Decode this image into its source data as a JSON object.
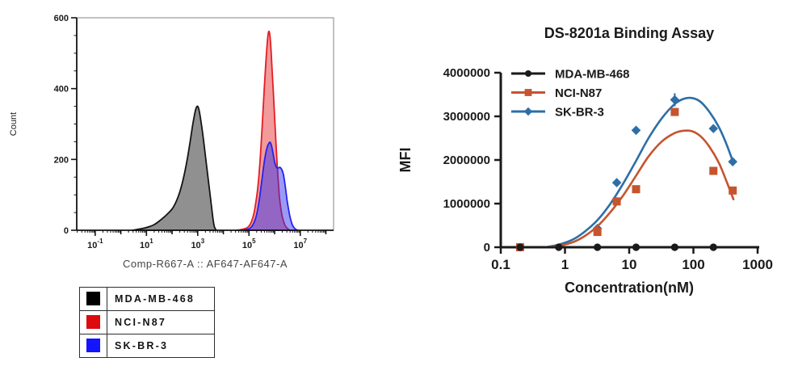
{
  "page": {
    "background": "#ffffff",
    "axis_color": "#1a1a1a"
  },
  "flow_legend": {
    "items": [
      {
        "label": "MDA-MB-468",
        "color": "#000000"
      },
      {
        "label": "NCI-N87",
        "color": "#dd0a10"
      },
      {
        "label": "SK-BR-3",
        "color": "#1414ff"
      }
    ]
  },
  "chart_data": [
    {
      "type": "area",
      "title": "",
      "xlabel": "Comp-R667-A :: AF647-AF647-A",
      "ylabel": "Count",
      "x_scale": "log10",
      "x_log_range": [
        -1.72,
        8.3
      ],
      "x_labeled_exponents": [
        -1,
        1,
        3,
        5,
        7
      ],
      "ylim": [
        0,
        600
      ],
      "y_major_ticks": [
        0,
        200,
        400,
        600
      ],
      "y_minor_step": 50,
      "grid": false,
      "series": [
        {
          "name": "MDA-MB-468",
          "stroke": "#141414",
          "fill": "rgba(125,125,125,0.85)",
          "points_logx_count": [
            [
              0.45,
              0
            ],
            [
              0.7,
              3
            ],
            [
              0.9,
              6
            ],
            [
              1.1,
              10
            ],
            [
              1.3,
              16
            ],
            [
              1.5,
              26
            ],
            [
              1.7,
              38
            ],
            [
              1.9,
              52
            ],
            [
              2.0,
              60
            ],
            [
              2.1,
              72
            ],
            [
              2.2,
              88
            ],
            [
              2.3,
              108
            ],
            [
              2.4,
              134
            ],
            [
              2.5,
              166
            ],
            [
              2.6,
              204
            ],
            [
              2.7,
              248
            ],
            [
              2.8,
              296
            ],
            [
              2.9,
              335
            ],
            [
              2.95,
              347
            ],
            [
              3.0,
              350
            ],
            [
              3.05,
              340
            ],
            [
              3.1,
              320
            ],
            [
              3.2,
              270
            ],
            [
              3.3,
              210
            ],
            [
              3.4,
              150
            ],
            [
              3.5,
              90
            ],
            [
              3.55,
              60
            ],
            [
              3.6,
              30
            ],
            [
              3.65,
              10
            ],
            [
              3.72,
              0
            ]
          ]
        },
        {
          "name": "NCI-N87",
          "stroke": "#e31e24",
          "fill": "rgba(227,30,36,0.45)",
          "points_logx_count": [
            [
              4.5,
              0
            ],
            [
              4.7,
              2
            ],
            [
              4.9,
              6
            ],
            [
              5.0,
              12
            ],
            [
              5.1,
              25
            ],
            [
              5.2,
              50
            ],
            [
              5.3,
              95
            ],
            [
              5.35,
              125
            ],
            [
              5.4,
              165
            ],
            [
              5.45,
              215
            ],
            [
              5.5,
              275
            ],
            [
              5.55,
              340
            ],
            [
              5.6,
              405
            ],
            [
              5.65,
              465
            ],
            [
              5.7,
              518
            ],
            [
              5.74,
              550
            ],
            [
              5.78,
              562
            ],
            [
              5.82,
              548
            ],
            [
              5.86,
              510
            ],
            [
              5.9,
              455
            ],
            [
              5.95,
              390
            ],
            [
              6.0,
              320
            ],
            [
              6.05,
              250
            ],
            [
              6.1,
              185
            ],
            [
              6.15,
              130
            ],
            [
              6.2,
              85
            ],
            [
              6.3,
              38
            ],
            [
              6.4,
              15
            ],
            [
              6.5,
              5
            ],
            [
              6.6,
              0
            ]
          ]
        },
        {
          "name": "SK-BR-3",
          "stroke": "#2323ee",
          "fill": "rgba(45,45,238,0.48)",
          "points_logx_count": [
            [
              4.8,
              0
            ],
            [
              5.0,
              4
            ],
            [
              5.1,
              10
            ],
            [
              5.2,
              22
            ],
            [
              5.3,
              45
            ],
            [
              5.4,
              85
            ],
            [
              5.5,
              140
            ],
            [
              5.6,
              195
            ],
            [
              5.7,
              232
            ],
            [
              5.8,
              248
            ],
            [
              5.85,
              245
            ],
            [
              5.9,
              232
            ],
            [
              5.95,
              212
            ],
            [
              6.0,
              193
            ],
            [
              6.05,
              181
            ],
            [
              6.1,
              176
            ],
            [
              6.15,
              176
            ],
            [
              6.2,
              178
            ],
            [
              6.25,
              175
            ],
            [
              6.3,
              168
            ],
            [
              6.35,
              155
            ],
            [
              6.4,
              132
            ],
            [
              6.45,
              105
            ],
            [
              6.5,
              78
            ],
            [
              6.6,
              38
            ],
            [
              6.7,
              14
            ],
            [
              6.8,
              4
            ],
            [
              6.9,
              0
            ]
          ]
        }
      ]
    },
    {
      "type": "scatter",
      "title": "DS-8201a Binding Assay",
      "xlabel": "Concentration(nM)",
      "ylabel": "MFI",
      "x_scale": "log10",
      "xlim": [
        0.1,
        1000
      ],
      "x_ticks": [
        0.1,
        1,
        10,
        100,
        1000
      ],
      "x_tick_labels": [
        "0.1",
        "1",
        "10",
        "100",
        "1000"
      ],
      "ylim": [
        0,
        4000000
      ],
      "y_ticks": [
        0,
        1000000,
        2000000,
        3000000,
        4000000
      ],
      "y_tick_labels": [
        "0",
        "1000000",
        "2000000",
        "3000000",
        "4000000"
      ],
      "grid": false,
      "legend_position": "top-left-inside",
      "series": [
        {
          "name": "MDA-MB-468",
          "color": "#1a1a1a",
          "marker": "circle",
          "points": [
            [
              0.2,
              0
            ],
            [
              0.8,
              0
            ],
            [
              3.2,
              0
            ],
            [
              12.8,
              0
            ],
            [
              51.2,
              0
            ],
            [
              204.8,
              0
            ]
          ],
          "curve": [
            [
              0.2,
              0
            ],
            [
              204.8,
              0
            ]
          ]
        },
        {
          "name": "NCI-N87",
          "color": "#c6542f",
          "marker": "square",
          "points": [
            [
              0.2,
              0
            ],
            [
              3.2,
              350000
            ],
            [
              6.4,
              1050000
            ],
            [
              12.8,
              1330000
            ],
            [
              51.2,
              3100000
            ],
            [
              204.8,
              1750000
            ],
            [
              409.6,
              1300000
            ]
          ],
          "curve": [
            [
              0.55,
              0
            ],
            [
              0.8,
              30000
            ],
            [
              1.3,
              110000
            ],
            [
              2,
              250000
            ],
            [
              3.2,
              480000
            ],
            [
              5,
              790000
            ],
            [
              8,
              1180000
            ],
            [
              12.8,
              1640000
            ],
            [
              20,
              2080000
            ],
            [
              32,
              2420000
            ],
            [
              50,
              2610000
            ],
            [
              70,
              2670000
            ],
            [
              95,
              2660000
            ],
            [
              130,
              2540000
            ],
            [
              180,
              2290000
            ],
            [
              250,
              1930000
            ],
            [
              330,
              1500000
            ],
            [
              420,
              1100000
            ]
          ]
        },
        {
          "name": "SK-BR-3",
          "color": "#2e6ea6",
          "marker": "diamond",
          "points": [
            [
              3.2,
              430000
            ],
            [
              6.4,
              1480000
            ],
            [
              12.8,
              2680000
            ],
            [
              51.2,
              3380000,
              150000
            ],
            [
              204.8,
              2720000
            ],
            [
              409.6,
              1960000
            ]
          ],
          "curve": [
            [
              0.5,
              0
            ],
            [
              0.8,
              60000
            ],
            [
              1.3,
              170000
            ],
            [
              2,
              350000
            ],
            [
              3.2,
              620000
            ],
            [
              5,
              980000
            ],
            [
              8,
              1450000
            ],
            [
              12.8,
              1980000
            ],
            [
              20,
              2500000
            ],
            [
              32,
              2950000
            ],
            [
              50,
              3270000
            ],
            [
              70,
              3400000
            ],
            [
              95,
              3420000
            ],
            [
              130,
              3330000
            ],
            [
              180,
              3090000
            ],
            [
              250,
              2750000
            ],
            [
              330,
              2350000
            ],
            [
              420,
              1930000
            ]
          ]
        }
      ]
    }
  ]
}
